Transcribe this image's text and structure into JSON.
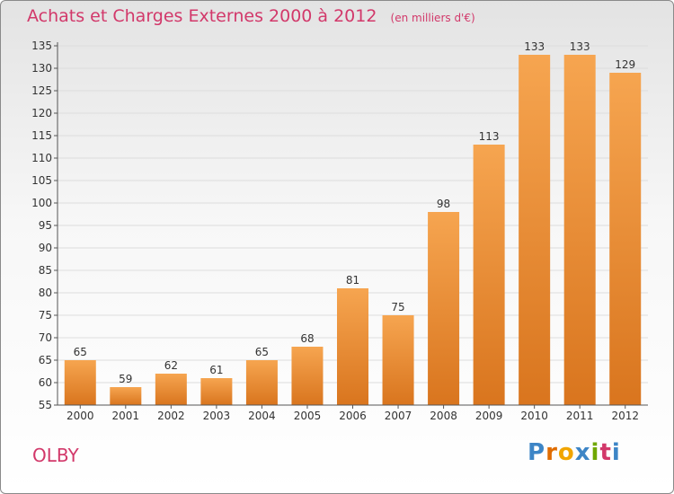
{
  "title": "Achats et Charges Externes 2000 à 2012",
  "unit": "(en milliers d'€)",
  "commune": "OLBY",
  "logo": {
    "text": "Proxiti",
    "letters": [
      "P",
      "r",
      "o",
      "x",
      "i",
      "t",
      "i"
    ],
    "colors": [
      "#3d85c6",
      "#e06c00",
      "#f1a500",
      "#3d85c6",
      "#70a800",
      "#d2386a",
      "#3d85c6"
    ]
  },
  "colors": {
    "accent": "#d2386a",
    "bar_light": "#f6a550",
    "bar_dark": "#d9751e",
    "grid": "#dddddd",
    "axis": "#555555"
  },
  "chart_data": {
    "type": "bar",
    "categories": [
      "2000",
      "2001",
      "2002",
      "2003",
      "2004",
      "2005",
      "2006",
      "2007",
      "2008",
      "2009",
      "2010",
      "2011",
      "2012"
    ],
    "values": [
      65,
      59,
      62,
      61,
      65,
      68,
      81,
      75,
      98,
      113,
      133,
      133,
      129
    ],
    "title": "Achats et Charges Externes 2000 à 2012",
    "subtitle": "(en milliers d'€)",
    "ylim": [
      55,
      135
    ],
    "yticks": [
      55,
      60,
      65,
      70,
      75,
      80,
      85,
      90,
      95,
      100,
      105,
      110,
      115,
      120,
      125,
      130,
      135
    ],
    "grid": true,
    "data_labels": true
  }
}
